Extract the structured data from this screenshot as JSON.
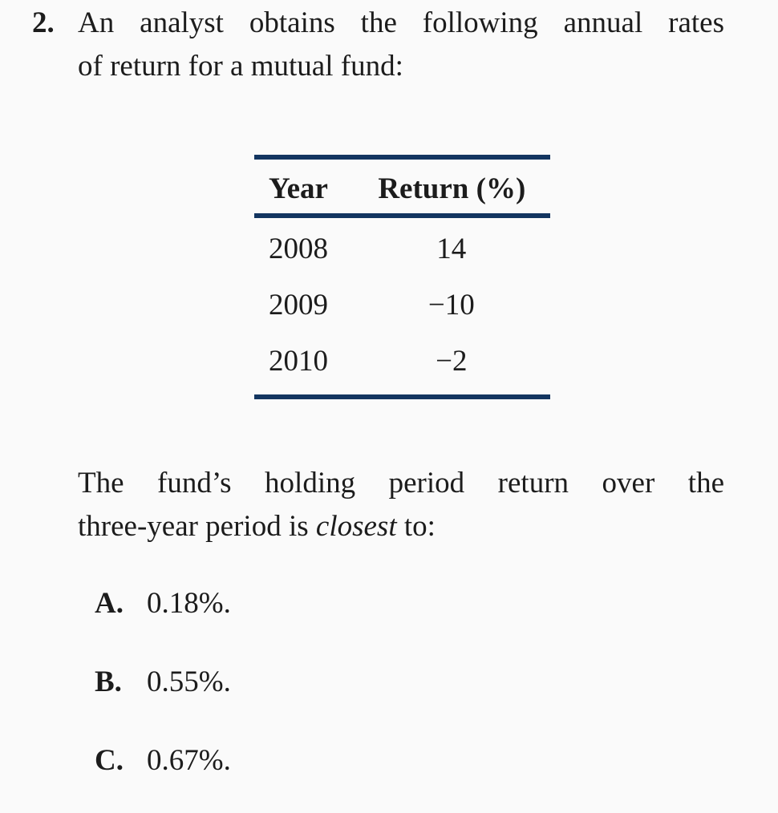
{
  "page": {
    "background_color": "#fafafa",
    "text_color": "#1c1c1c",
    "rule_color": "#133560"
  },
  "question": {
    "number": "2.",
    "line1": "An analyst obtains the following annual rates",
    "line2": "of return for a mutual fund:"
  },
  "table": {
    "headers": {
      "year": "Year",
      "return": "Return (%)"
    },
    "rows": [
      {
        "year": "2008",
        "return": "14"
      },
      {
        "year": "2009",
        "return": "−10"
      },
      {
        "year": "2010",
        "return": "−2"
      }
    ]
  },
  "stem": {
    "line1": "The fund’s holding period return over the",
    "line2_pre": "three-year period is ",
    "line2_emphasis": "closest",
    "line2_post": " to:"
  },
  "options": [
    {
      "label": "A.",
      "text": "0.18%."
    },
    {
      "label": "B.",
      "text": "0.55%."
    },
    {
      "label": "C.",
      "text": "0.67%."
    }
  ],
  "chart_data": {
    "type": "table",
    "title": "Annual rates of return for a mutual fund",
    "columns": [
      "Year",
      "Return (%)"
    ],
    "rows": [
      [
        "2008",
        14
      ],
      [
        "2009",
        -10
      ],
      [
        "2010",
        -2
      ]
    ]
  }
}
